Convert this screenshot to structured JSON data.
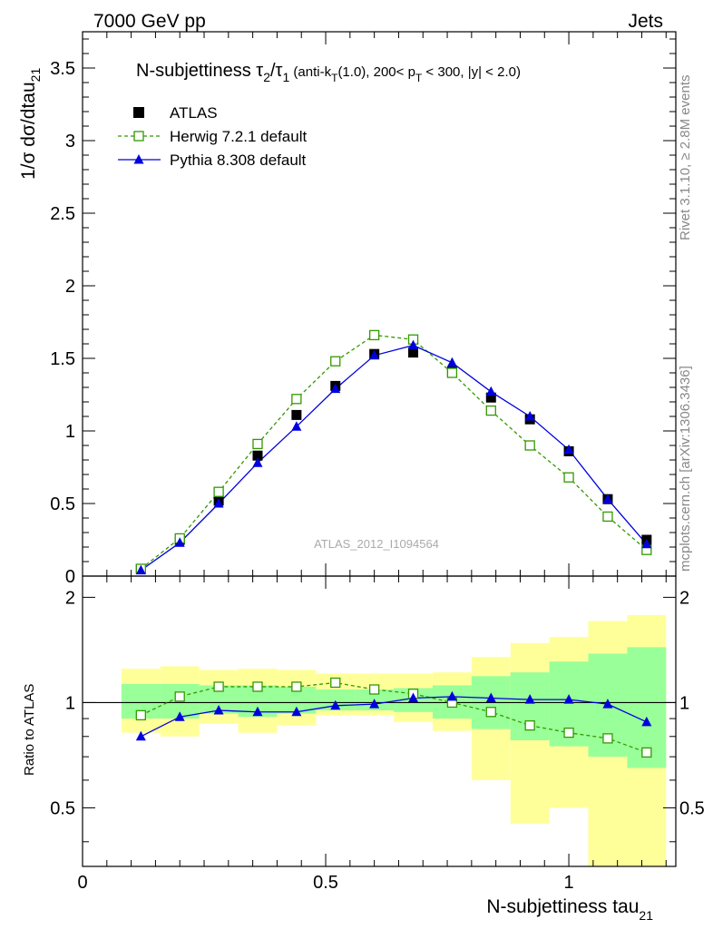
{
  "header": {
    "energy": "7000 GeV pp",
    "category": "Jets"
  },
  "side": {
    "rivet": "Rivet 3.1.10, ≥ 2.8M events",
    "mcplots": "mcplots.cern.ch [arXiv:1306.3436]"
  },
  "main": {
    "title_parts": [
      "N-subjettiness ",
      "τ",
      "2",
      "/",
      "τ",
      "1",
      " (anti-k",
      "T",
      "(1.0), 200< p",
      "T",
      " < 300, |y| < 2.0)"
    ],
    "ylabel_main": "1/σ dσ/dtau",
    "ylabel_sub": "21",
    "watermark": "ATLAS_2012_I1094564",
    "yticks": [
      "0",
      "0.5",
      "1",
      "1.5",
      "2",
      "2.5",
      "3",
      "3.5"
    ]
  },
  "ratio": {
    "ylabel": "Ratio to ATLAS",
    "yticks": [
      "0.5",
      "1",
      "2"
    ]
  },
  "xaxis": {
    "label_main": "N-subjettiness tau",
    "label_sub": "21",
    "ticks": [
      "0",
      "0.5",
      "1"
    ]
  },
  "legend": [
    {
      "name": "ATLAS",
      "color": "#000000",
      "style": "square-filled"
    },
    {
      "name": "Herwig 7.2.1 default",
      "color": "#339900",
      "style": "square-open-dashed"
    },
    {
      "name": "Pythia 8.308 default",
      "color": "#0000dd",
      "style": "triangle-solid"
    }
  ],
  "chart_data": {
    "type": "line",
    "xlim": [
      0,
      1.22
    ],
    "ylim": [
      0,
      3.75
    ],
    "ratio_ylim": [
      0.34,
      2.3
    ],
    "ratio_scale": "log",
    "bin_edges": [
      0.08,
      0.16,
      0.24,
      0.32,
      0.4,
      0.48,
      0.56,
      0.64,
      0.72,
      0.8,
      0.88,
      0.96,
      1.04,
      1.12,
      1.2
    ],
    "x": [
      0.12,
      0.2,
      0.28,
      0.36,
      0.44,
      0.52,
      0.6,
      0.68,
      0.76,
      0.84,
      0.92,
      1.0,
      1.08,
      1.16
    ],
    "series": [
      {
        "name": "ATLAS",
        "values": [
          0.05,
          0.25,
          0.52,
          0.83,
          1.11,
          1.31,
          1.53,
          1.54,
          1.41,
          1.23,
          1.08,
          0.86,
          0.53,
          0.25
        ]
      },
      {
        "name": "Herwig 7.2.1 default",
        "values": [
          0.05,
          0.26,
          0.58,
          0.91,
          1.22,
          1.48,
          1.66,
          1.63,
          1.4,
          1.14,
          0.9,
          0.68,
          0.41,
          0.18
        ]
      },
      {
        "name": "Pythia 8.308 default",
        "values": [
          0.04,
          0.23,
          0.5,
          0.78,
          1.03,
          1.29,
          1.52,
          1.59,
          1.47,
          1.27,
          1.1,
          0.87,
          0.53,
          0.22
        ]
      }
    ],
    "ratio_series": [
      {
        "name": "Herwig 7.2.1 default",
        "values": [
          0.92,
          1.04,
          1.11,
          1.11,
          1.11,
          1.14,
          1.09,
          1.06,
          1.0,
          0.94,
          0.86,
          0.82,
          0.79,
          0.72
        ]
      },
      {
        "name": "Pythia 8.308 default",
        "values": [
          0.8,
          0.91,
          0.95,
          0.94,
          0.94,
          0.98,
          0.99,
          1.03,
          1.04,
          1.03,
          1.02,
          1.02,
          0.99,
          0.88
        ]
      }
    ],
    "band_inner": {
      "lo": [
        0.9,
        0.9,
        0.93,
        0.91,
        0.93,
        0.95,
        0.95,
        0.94,
        0.9,
        0.84,
        0.78,
        0.75,
        0.7,
        0.65
      ],
      "hi": [
        1.13,
        1.13,
        1.12,
        1.12,
        1.11,
        1.09,
        1.09,
        1.1,
        1.12,
        1.19,
        1.22,
        1.31,
        1.38,
        1.44
      ]
    },
    "band_outer": {
      "lo": [
        0.82,
        0.8,
        0.87,
        0.82,
        0.86,
        0.92,
        0.92,
        0.88,
        0.83,
        0.6,
        0.45,
        0.5,
        0.34,
        0.34
      ],
      "hi": [
        1.25,
        1.27,
        1.24,
        1.25,
        1.24,
        1.21,
        1.21,
        1.21,
        1.22,
        1.35,
        1.48,
        1.54,
        1.71,
        1.78
      ]
    }
  }
}
